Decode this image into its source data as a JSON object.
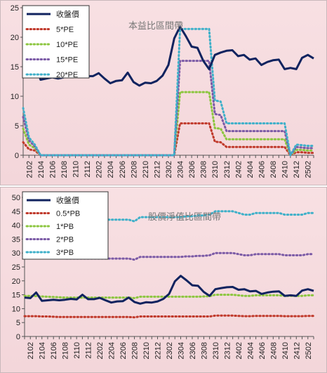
{
  "chart_data": [
    {
      "type": "line",
      "title": "本益比區間帶",
      "xlabel": "",
      "ylabel": "",
      "ylim": [
        0,
        25
      ],
      "yticks": [
        0,
        5,
        10,
        15,
        20,
        25
      ],
      "grid": false,
      "legend_position": "top-left",
      "x_tick_labels": [
        "2102",
        "2104",
        "2106",
        "2108",
        "2110",
        "2112",
        "2202",
        "2204",
        "2206",
        "2208",
        "2210",
        "2212",
        "2302",
        "2304",
        "2306",
        "2308",
        "2310",
        "2312",
        "2402",
        "2404",
        "2406",
        "2408",
        "2410",
        "2412",
        "2502"
      ],
      "x": [
        "2101",
        "2102",
        "2103",
        "2104",
        "2105",
        "2106",
        "2107",
        "2108",
        "2109",
        "2110",
        "2111",
        "2112",
        "2201",
        "2202",
        "2203",
        "2204",
        "2205",
        "2206",
        "2207",
        "2208",
        "2209",
        "2210",
        "2211",
        "2212",
        "2301",
        "2302",
        "2303",
        "2304",
        "2305",
        "2306",
        "2307",
        "2308",
        "2309",
        "2310",
        "2311",
        "2312",
        "2401",
        "2402",
        "2403",
        "2404",
        "2405",
        "2406",
        "2407",
        "2408",
        "2409",
        "2410",
        "2411",
        "2412",
        "2501",
        "2502",
        "2503"
      ],
      "series": [
        {
          "name": "收盤價",
          "color": "#10235f",
          "style": "solid",
          "values": [
            14.0,
            13.8,
            15.8,
            12.8,
            13.0,
            13.2,
            13.0,
            13.2,
            13.5,
            13.3,
            15.0,
            13.4,
            13.4,
            13.9,
            13.0,
            12.2,
            12.6,
            12.7,
            14.0,
            12.4,
            11.8,
            12.3,
            12.2,
            12.6,
            13.5,
            15.3,
            19.8,
            21.8,
            20.2,
            18.4,
            18.2,
            16.0,
            14.6,
            17.0,
            17.4,
            17.7,
            17.8,
            16.8,
            17.0,
            16.2,
            16.4,
            15.3,
            15.8,
            16.1,
            16.2,
            14.6,
            14.8,
            14.6,
            16.5,
            17.0,
            16.4
          ]
        },
        {
          "name": "5*PE",
          "color": "#c0392b",
          "style": "dotted",
          "values": [
            2.2,
            1.0,
            0.8,
            0,
            0,
            0,
            0,
            0,
            0,
            0,
            0,
            0,
            0,
            0,
            0,
            0,
            0,
            0,
            0,
            0,
            0,
            0,
            0,
            0,
            0,
            0,
            0,
            5.4,
            5.4,
            5.4,
            5.4,
            5.4,
            5.4,
            2.3,
            2.2,
            1.4,
            1.4,
            1.4,
            1.4,
            1.4,
            1.4,
            1.4,
            1.4,
            1.4,
            1.4,
            1.4,
            0,
            0.5,
            0.5,
            0.4,
            0.4
          ]
        },
        {
          "name": "10*PE",
          "color": "#8cc63f",
          "style": "dotted",
          "values": [
            4.5,
            1.8,
            1.2,
            0,
            0,
            0,
            0,
            0,
            0,
            0,
            0,
            0,
            0,
            0,
            0,
            0,
            0,
            0,
            0,
            0,
            0,
            0,
            0,
            0,
            0,
            0,
            0,
            10.7,
            10.7,
            10.7,
            10.7,
            10.7,
            10.7,
            4.6,
            4.5,
            2.7,
            2.7,
            2.7,
            2.7,
            2.7,
            2.7,
            2.7,
            2.7,
            2.7,
            2.7,
            2.7,
            0,
            0.9,
            0.9,
            0.8,
            0.8
          ]
        },
        {
          "name": "15*PE",
          "color": "#7b5aa6",
          "style": "dotted",
          "values": [
            6.5,
            2.5,
            1.5,
            0,
            0,
            0,
            0,
            0,
            0,
            0,
            0,
            0,
            0,
            0,
            0,
            0,
            0,
            0,
            0,
            0,
            0,
            0,
            0,
            0,
            0,
            0,
            0,
            16.0,
            16.0,
            16.0,
            16.0,
            16.0,
            16.0,
            7.0,
            6.8,
            4.1,
            4.1,
            4.1,
            4.1,
            4.1,
            4.1,
            4.1,
            4.1,
            4.1,
            4.1,
            4.1,
            0,
            1.4,
            1.3,
            1.2,
            1.2
          ]
        },
        {
          "name": "20*PE",
          "color": "#3fb0c9",
          "style": "dotted",
          "values": [
            8.0,
            3.0,
            1.8,
            0,
            0,
            0,
            0,
            0,
            0,
            0,
            0,
            0,
            0,
            0,
            0,
            0,
            0,
            0,
            0,
            0,
            0,
            0,
            0,
            0,
            0,
            0,
            0,
            21.4,
            21.4,
            21.4,
            21.4,
            21.4,
            21.4,
            9.3,
            9.1,
            5.4,
            5.4,
            5.4,
            5.4,
            5.4,
            5.4,
            5.4,
            5.4,
            5.4,
            5.4,
            5.4,
            0,
            1.8,
            1.7,
            1.6,
            1.6
          ]
        }
      ]
    },
    {
      "type": "line",
      "title": "股價淨值比區間帶",
      "xlabel": "",
      "ylabel": "",
      "ylim": [
        0,
        50
      ],
      "yticks": [
        0,
        5,
        10,
        15,
        20,
        25,
        30,
        35,
        40,
        45,
        50
      ],
      "grid": false,
      "legend_position": "top-left",
      "x_tick_labels": [
        "2102",
        "2104",
        "2106",
        "2108",
        "2110",
        "2112",
        "2202",
        "2204",
        "2206",
        "2208",
        "2210",
        "2212",
        "2302",
        "2304",
        "2306",
        "2308",
        "2310",
        "2312",
        "2402",
        "2404",
        "2406",
        "2408",
        "2410",
        "2412",
        "2502"
      ],
      "x": [
        "2101",
        "2102",
        "2103",
        "2104",
        "2105",
        "2106",
        "2107",
        "2108",
        "2109",
        "2110",
        "2111",
        "2112",
        "2201",
        "2202",
        "2203",
        "2204",
        "2205",
        "2206",
        "2207",
        "2208",
        "2209",
        "2210",
        "2211",
        "2212",
        "2301",
        "2302",
        "2303",
        "2304",
        "2305",
        "2306",
        "2307",
        "2308",
        "2309",
        "2310",
        "2311",
        "2312",
        "2401",
        "2402",
        "2403",
        "2404",
        "2405",
        "2406",
        "2407",
        "2408",
        "2409",
        "2410",
        "2411",
        "2412",
        "2501",
        "2502",
        "2503"
      ],
      "series": [
        {
          "name": "收盤價",
          "color": "#10235f",
          "style": "solid",
          "values": [
            14.0,
            13.8,
            15.8,
            12.8,
            13.0,
            13.2,
            13.0,
            13.2,
            13.5,
            13.3,
            15.0,
            13.4,
            13.4,
            13.9,
            13.0,
            12.2,
            12.6,
            12.7,
            14.0,
            12.4,
            11.8,
            12.3,
            12.2,
            12.6,
            13.5,
            15.3,
            19.8,
            21.8,
            20.2,
            18.4,
            18.2,
            16.0,
            14.6,
            17.0,
            17.4,
            17.7,
            17.8,
            16.8,
            17.0,
            16.2,
            16.4,
            15.3,
            15.8,
            16.1,
            16.2,
            14.6,
            14.8,
            14.6,
            16.5,
            17.0,
            16.4
          ]
        },
        {
          "name": "0.5*PB",
          "color": "#c0392b",
          "style": "dotted",
          "values": [
            7.3,
            7.3,
            7.3,
            7.2,
            7.2,
            7.1,
            7.0,
            7.0,
            7.0,
            7.0,
            7.0,
            7.0,
            7.0,
            7.0,
            7.0,
            7.0,
            7.0,
            7.0,
            7.0,
            6.9,
            7.2,
            7.2,
            7.2,
            7.2,
            7.2,
            7.2,
            7.2,
            7.2,
            7.2,
            7.2,
            7.2,
            7.2,
            7.2,
            7.5,
            7.5,
            7.5,
            7.5,
            7.4,
            7.3,
            7.3,
            7.4,
            7.4,
            7.4,
            7.4,
            7.4,
            7.3,
            7.3,
            7.3,
            7.3,
            7.4,
            7.4
          ]
        },
        {
          "name": "1*PB",
          "color": "#8cc63f",
          "style": "dotted",
          "values": [
            14.6,
            14.6,
            14.5,
            14.4,
            14.3,
            14.2,
            14.1,
            14.0,
            14.0,
            14.0,
            14.0,
            14.0,
            14.0,
            14.0,
            14.0,
            14.0,
            14.0,
            14.0,
            14.0,
            13.8,
            14.3,
            14.3,
            14.3,
            14.3,
            14.3,
            14.3,
            14.3,
            14.3,
            14.3,
            14.3,
            14.3,
            14.4,
            14.5,
            15.0,
            15.0,
            15.0,
            15.0,
            14.8,
            14.6,
            14.6,
            14.8,
            14.8,
            14.8,
            14.8,
            14.8,
            14.6,
            14.6,
            14.6,
            14.6,
            14.8,
            14.8
          ]
        },
        {
          "name": "2*PB",
          "color": "#7b5aa6",
          "style": "dotted",
          "values": [
            29.2,
            29.2,
            29.0,
            28.8,
            28.6,
            28.4,
            28.2,
            28.0,
            28.0,
            28.0,
            28.0,
            28.0,
            28.0,
            28.0,
            28.0,
            28.0,
            28.0,
            28.0,
            28.0,
            27.6,
            28.6,
            28.6,
            28.6,
            28.6,
            28.6,
            28.6,
            28.6,
            28.6,
            28.8,
            28.8,
            29.0,
            29.0,
            29.2,
            30.0,
            30.0,
            30.0,
            30.0,
            29.6,
            29.2,
            29.2,
            29.6,
            29.6,
            29.6,
            29.6,
            29.6,
            29.2,
            29.2,
            29.2,
            29.2,
            29.6,
            29.6
          ]
        },
        {
          "name": "3*PB",
          "color": "#3fb0c9",
          "style": "dotted",
          "values": [
            43.8,
            43.8,
            43.5,
            43.2,
            42.9,
            42.6,
            42.3,
            42.0,
            42.0,
            42.0,
            42.0,
            42.0,
            42.0,
            42.0,
            42.0,
            42.0,
            42.0,
            42.0,
            42.0,
            41.4,
            42.9,
            42.9,
            42.9,
            42.9,
            42.9,
            42.9,
            42.9,
            42.9,
            43.2,
            43.2,
            43.5,
            43.5,
            43.8,
            45.0,
            45.0,
            45.0,
            45.0,
            44.4,
            43.8,
            43.8,
            44.4,
            44.4,
            44.4,
            44.4,
            44.4,
            43.8,
            43.8,
            43.8,
            43.8,
            44.4,
            44.4
          ]
        }
      ]
    }
  ]
}
